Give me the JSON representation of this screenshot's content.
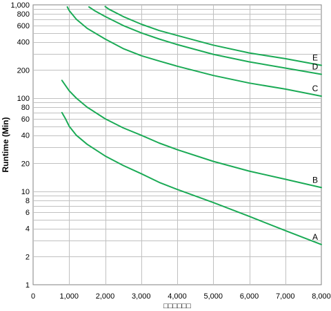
{
  "chart_data": {
    "type": "line",
    "title": "",
    "xlabel": "□□□□□□",
    "ylabel": "Runtime (Min)",
    "xlim": [
      0,
      8000
    ],
    "ylim": [
      1,
      1000
    ],
    "y_scale": "log",
    "grid": true,
    "x_ticks": [
      0,
      1000,
      2000,
      3000,
      4000,
      5000,
      6000,
      7000,
      8000
    ],
    "x_tick_labels": [
      "0",
      "1,000",
      "2,000",
      "3,000",
      "4,000",
      "5,000",
      "6,000",
      "7,000",
      "8,000"
    ],
    "y_ticks": [
      1,
      2,
      4,
      6,
      8,
      10,
      20,
      40,
      60,
      80,
      100,
      200,
      400,
      600,
      800,
      1000
    ],
    "y_tick_labels": [
      "1",
      "2",
      "4",
      "6",
      "8",
      "10",
      "20",
      "40",
      "60",
      "80",
      "100",
      "200",
      "400",
      "600",
      "800",
      "1,000"
    ],
    "y_minor_grid": [
      3,
      5,
      7,
      9,
      30,
      50,
      70,
      90,
      300,
      500,
      700,
      900
    ],
    "line_color": "#1aaa55",
    "series": [
      {
        "name": "A",
        "x": [
          800,
          900,
          1000,
          1200,
          1500,
          2000,
          2500,
          3000,
          3500,
          4000,
          5000,
          6000,
          7000,
          8000
        ],
        "y": [
          70,
          60,
          50,
          40,
          32,
          24,
          19,
          15.5,
          12.5,
          10.5,
          7.6,
          5.4,
          3.8,
          2.7
        ]
      },
      {
        "name": "B",
        "x": [
          800,
          1000,
          1200,
          1500,
          2000,
          2500,
          3000,
          3500,
          4000,
          5000,
          6000,
          7000,
          8000
        ],
        "y": [
          155,
          120,
          100,
          80,
          60,
          48,
          40,
          33,
          28,
          21,
          16.5,
          13.5,
          11
        ]
      },
      {
        "name": "C",
        "x": [
          950,
          1000,
          1200,
          1500,
          2000,
          2500,
          3000,
          3500,
          4000,
          5000,
          6000,
          7000,
          8000
        ],
        "y": [
          950,
          870,
          700,
          560,
          430,
          340,
          285,
          250,
          220,
          175,
          145,
          125,
          105
        ]
      },
      {
        "name": "D",
        "x": [
          1550,
          1700,
          2000,
          2500,
          3000,
          3500,
          4000,
          5000,
          6000,
          7000,
          8000
        ],
        "y": [
          950,
          870,
          750,
          600,
          500,
          430,
          375,
          295,
          245,
          210,
          180
        ]
      },
      {
        "name": "E",
        "x": [
          2000,
          2100,
          2500,
          3000,
          3500,
          4000,
          5000,
          6000,
          7000,
          8000
        ],
        "y": [
          960,
          900,
          750,
          620,
          530,
          470,
          370,
          305,
          265,
          225
        ]
      }
    ]
  }
}
